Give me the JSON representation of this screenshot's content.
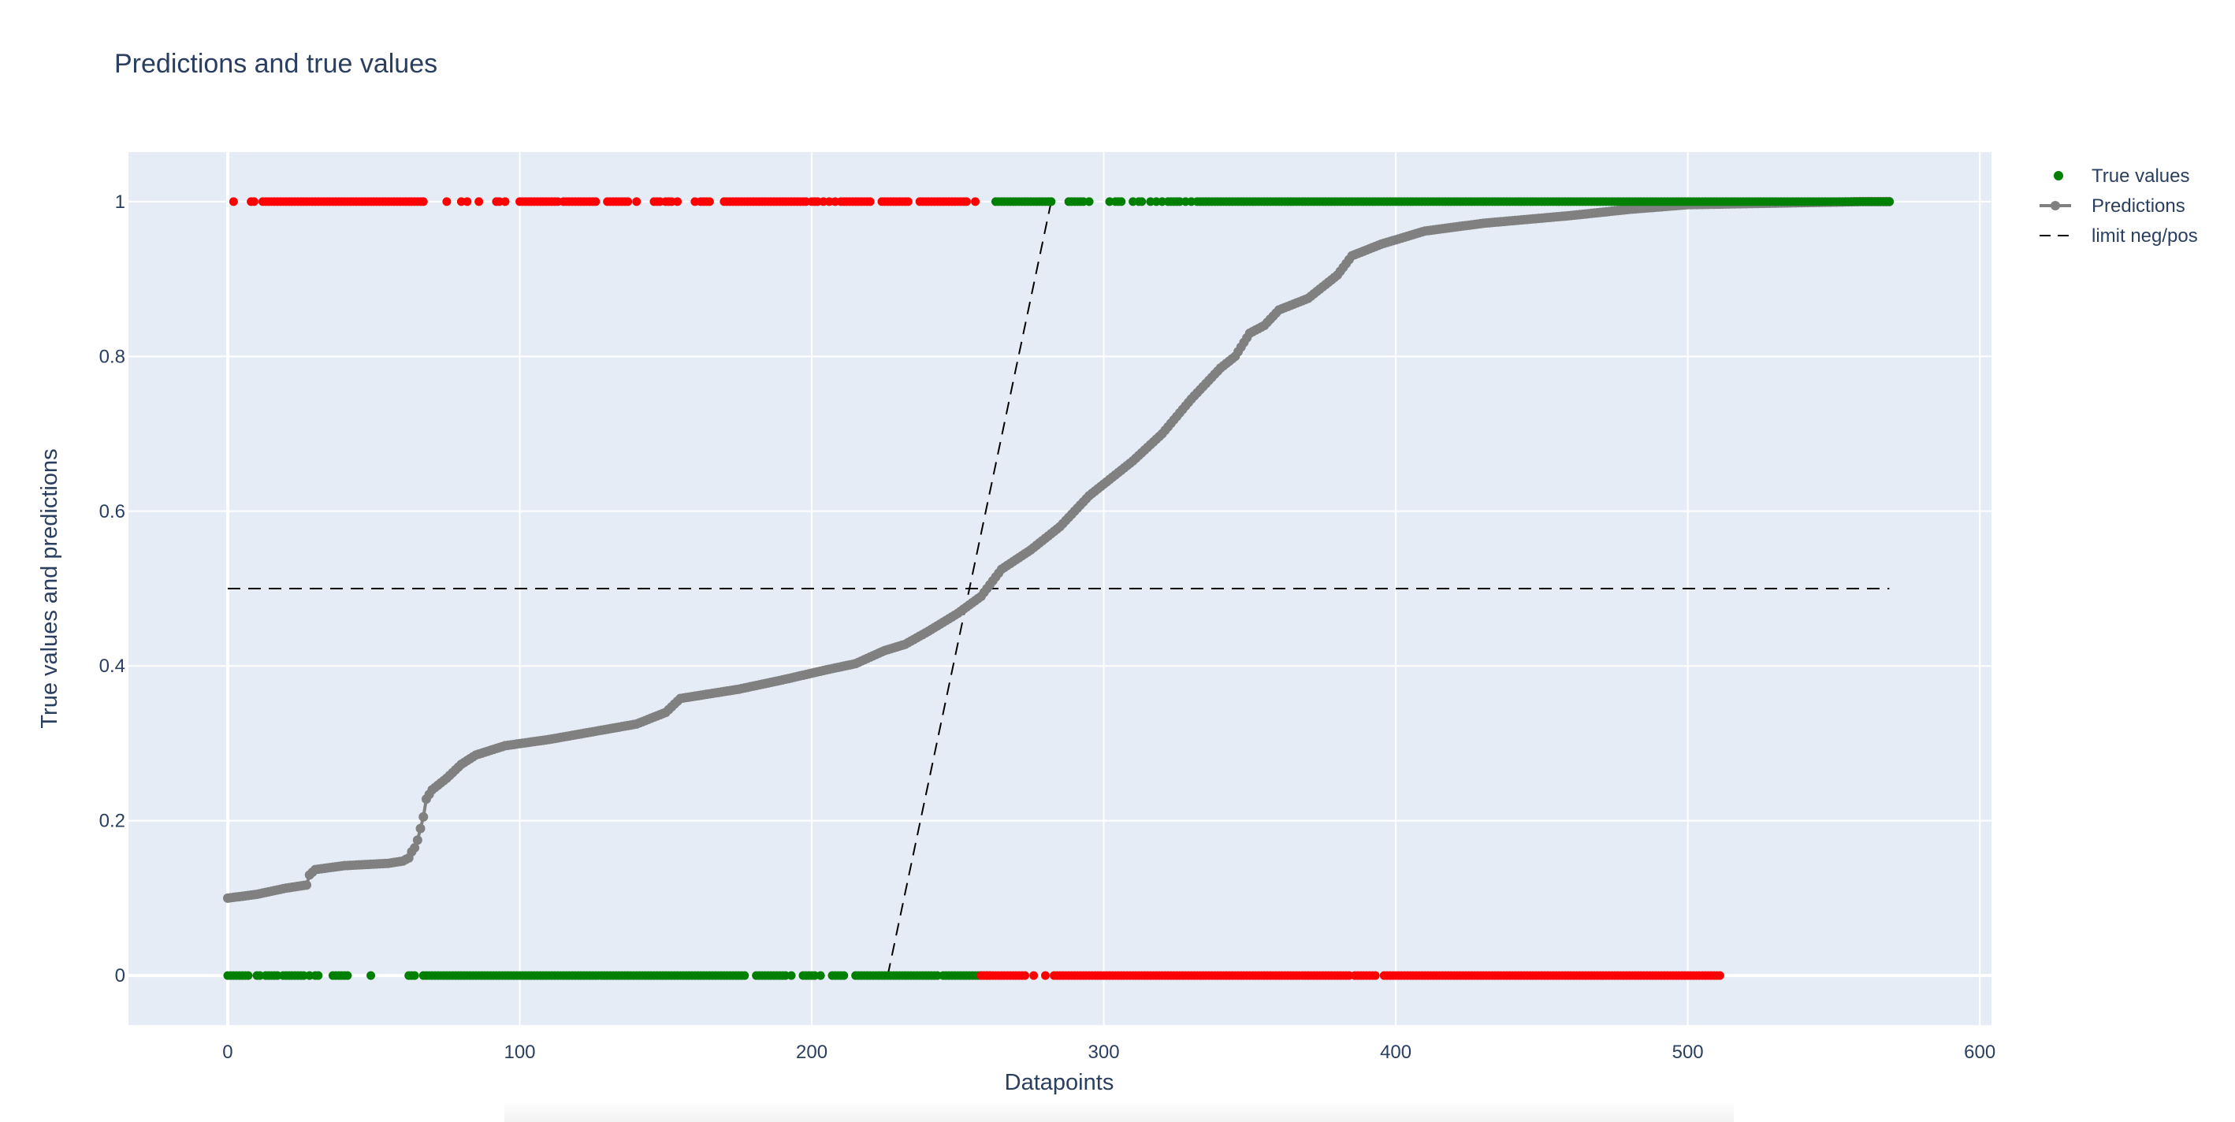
{
  "chart_data": {
    "type": "scatter",
    "title": "Predictions and true values",
    "xlabel": "Datapoints",
    "ylabel": "True values and predictions",
    "xlim": [
      -34,
      604
    ],
    "ylim": [
      -0.064,
      1.064
    ],
    "x_ticks": [
      0,
      100,
      200,
      300,
      400,
      500,
      600
    ],
    "x_tick_labels": [
      "0",
      "100",
      "200",
      "300",
      "400",
      "500",
      "600"
    ],
    "y_ticks": [
      0,
      0.2,
      0.4,
      0.6,
      0.8,
      1
    ],
    "y_tick_labels": [
      "0",
      "0.2",
      "0.4",
      "0.6",
      "0.8",
      "1"
    ],
    "grid": true,
    "legend_position": "top-right",
    "colors": {
      "plot_bg": "#e5ecf6",
      "grid": "#ffffff",
      "correct": "#008000",
      "wrong": "#ff0000",
      "predictions": "#808080",
      "limit": "#000000"
    },
    "legend": [
      {
        "label": "True values",
        "symbol": "marker",
        "color": "#008000"
      },
      {
        "label": "Predictions",
        "symbol": "line-marker",
        "color": "#808080"
      },
      {
        "label": "limit neg/pos",
        "symbol": "dash",
        "color": "#000000"
      }
    ],
    "series": [
      {
        "name": "True values",
        "mode": "markers",
        "points_y1_red": [
          2,
          8,
          9,
          12,
          13,
          14,
          15,
          16,
          17,
          18,
          19,
          20,
          21,
          22,
          23,
          24,
          25,
          26,
          27,
          28,
          29,
          30,
          31,
          32,
          33,
          34,
          35,
          36,
          37,
          38,
          39,
          40,
          41,
          42,
          43,
          44,
          45,
          46,
          47,
          48,
          49,
          50,
          51,
          52,
          53,
          54,
          55,
          56,
          57,
          58,
          59,
          60,
          61,
          62,
          63,
          64,
          65,
          66,
          67,
          75,
          80,
          82,
          86,
          92,
          93,
          95,
          100,
          101,
          102,
          103,
          104,
          105,
          106,
          107,
          108,
          109,
          110,
          111,
          112,
          113,
          115,
          116,
          117,
          118,
          119,
          120,
          121,
          122,
          123,
          124,
          125,
          126,
          130,
          131,
          132,
          133,
          134,
          135,
          136,
          137,
          140,
          146,
          147,
          148,
          150,
          151,
          152,
          154,
          160,
          162,
          163,
          164,
          165,
          170,
          171,
          172,
          173,
          174,
          175,
          176,
          177,
          178,
          179,
          180,
          181,
          182,
          183,
          184,
          185,
          186,
          187,
          188,
          189,
          190,
          191,
          192,
          193,
          194,
          195,
          196,
          197,
          198,
          200,
          201,
          202,
          204,
          206,
          208,
          210,
          211,
          212,
          213,
          214,
          215,
          216,
          217,
          218,
          219,
          220,
          224,
          225,
          226,
          227,
          228,
          229,
          230,
          231,
          232,
          233,
          237,
          238,
          239,
          240,
          241,
          242,
          243,
          244,
          245,
          246,
          247,
          248,
          249,
          250,
          251,
          252,
          253,
          256
        ],
        "points_y1_green": [
          263,
          264,
          265,
          266,
          267,
          268,
          269,
          270,
          271,
          272,
          273,
          274,
          275,
          276,
          277,
          278,
          279,
          280,
          281,
          282,
          288,
          289,
          290,
          291,
          292,
          293,
          295,
          302,
          304,
          305,
          306,
          310,
          312,
          313,
          316,
          318,
          320,
          322,
          323,
          324,
          325,
          326,
          328,
          330,
          332,
          333,
          334,
          335,
          336,
          337,
          338,
          339,
          340,
          341,
          342,
          343,
          344,
          345,
          346,
          347,
          348,
          349,
          350,
          351,
          352,
          353,
          354,
          355,
          356,
          357,
          358,
          359,
          360,
          361,
          362,
          363,
          364,
          365,
          366,
          367,
          368,
          369,
          370,
          371,
          372,
          373,
          374,
          375,
          376,
          377,
          378,
          379,
          380,
          381,
          382,
          383,
          384,
          385,
          386,
          387,
          388,
          389,
          390,
          391,
          392,
          393,
          394,
          395,
          396,
          397,
          398,
          399,
          400,
          401,
          402,
          403,
          404,
          405,
          406,
          407,
          408,
          409,
          410,
          411,
          412,
          413,
          414,
          415,
          416,
          417,
          418,
          419,
          420,
          421,
          422,
          423,
          424,
          425,
          426,
          427,
          428,
          429,
          430,
          431,
          432,
          433,
          434,
          435,
          436,
          437,
          438,
          439,
          440,
          441,
          442,
          443,
          444,
          445,
          446,
          447,
          448,
          449,
          450,
          451,
          452,
          453,
          454,
          455,
          456,
          457,
          458,
          459,
          460,
          461,
          462,
          463,
          464,
          465,
          466,
          467,
          468,
          469,
          470,
          471,
          472,
          473,
          474,
          475,
          476,
          477,
          478,
          479,
          480,
          481,
          482,
          483,
          484,
          485,
          486,
          487,
          488,
          489,
          490,
          491,
          492,
          493,
          494,
          495,
          496,
          497,
          498,
          499,
          500,
          501,
          502,
          503,
          504,
          505,
          506,
          507,
          508,
          509,
          510,
          511,
          512,
          513,
          514,
          515,
          516,
          517,
          518,
          519,
          520,
          521,
          522,
          523,
          524,
          525,
          526,
          527,
          528,
          529,
          530,
          531,
          532,
          533,
          534,
          535,
          536,
          537,
          538,
          539,
          540,
          541,
          542,
          543,
          544,
          545,
          546,
          547,
          548,
          549,
          550,
          551,
          552,
          553,
          554,
          555,
          556,
          557,
          558,
          559,
          560,
          561,
          562,
          563,
          564,
          565,
          566,
          567,
          568,
          569
        ],
        "points_y0_green": [
          0,
          1,
          2,
          3,
          4,
          5,
          6,
          7,
          10,
          11,
          13,
          14,
          15,
          16,
          17,
          19,
          20,
          21,
          22,
          23,
          24,
          25,
          26,
          28,
          30,
          31,
          36,
          37,
          38,
          39,
          40,
          41,
          49,
          62,
          63,
          64,
          67,
          68,
          69,
          70,
          71,
          72,
          73,
          74,
          75,
          76,
          77,
          78,
          79,
          80,
          81,
          82,
          83,
          84,
          85,
          86,
          87,
          88,
          89,
          90,
          91,
          92,
          93,
          94,
          95,
          96,
          97,
          98,
          99,
          100,
          101,
          102,
          103,
          104,
          105,
          106,
          107,
          108,
          109,
          110,
          111,
          112,
          113,
          114,
          115,
          116,
          117,
          118,
          119,
          120,
          121,
          122,
          123,
          124,
          125,
          126,
          127,
          128,
          129,
          130,
          131,
          132,
          133,
          134,
          135,
          136,
          137,
          138,
          139,
          140,
          141,
          142,
          143,
          144,
          145,
          146,
          147,
          148,
          149,
          150,
          151,
          152,
          153,
          154,
          155,
          156,
          157,
          158,
          159,
          160,
          161,
          162,
          163,
          164,
          165,
          166,
          167,
          168,
          169,
          170,
          171,
          172,
          173,
          174,
          175,
          176,
          177,
          181,
          182,
          183,
          184,
          185,
          186,
          187,
          188,
          189,
          190,
          191,
          193,
          197,
          198,
          199,
          200,
          201,
          203,
          207,
          208,
          209,
          210,
          211,
          215,
          216,
          217,
          218,
          219,
          220,
          221,
          222,
          223,
          224,
          225,
          226,
          227,
          228,
          229,
          230,
          231,
          232,
          233,
          234,
          235,
          236,
          237,
          238,
          239,
          240,
          241,
          242,
          243,
          245,
          246,
          247,
          248,
          249,
          250,
          251,
          252,
          253,
          254,
          255,
          256,
          257,
          258,
          259,
          260,
          261
        ],
        "points_y0_red": [
          258,
          259,
          260,
          261,
          262,
          263,
          264,
          265,
          266,
          267,
          268,
          269,
          270,
          271,
          272,
          273,
          276,
          280,
          283,
          284,
          285,
          286,
          287,
          288,
          289,
          290,
          291,
          292,
          293,
          294,
          295,
          296,
          297,
          298,
          299,
          300,
          301,
          302,
          303,
          304,
          305,
          306,
          307,
          308,
          309,
          310,
          311,
          312,
          313,
          314,
          315,
          316,
          317,
          318,
          319,
          320,
          321,
          322,
          323,
          324,
          325,
          326,
          327,
          328,
          329,
          330,
          331,
          332,
          333,
          334,
          335,
          336,
          337,
          338,
          339,
          340,
          341,
          342,
          343,
          344,
          345,
          346,
          347,
          348,
          349,
          350,
          351,
          352,
          353,
          354,
          355,
          356,
          357,
          358,
          359,
          360,
          361,
          362,
          363,
          364,
          365,
          366,
          367,
          368,
          369,
          370,
          371,
          372,
          373,
          374,
          375,
          376,
          377,
          378,
          379,
          380,
          381,
          382,
          383,
          384,
          386,
          387,
          388,
          389,
          390,
          391,
          392,
          393,
          396,
          397,
          398,
          399,
          400,
          401,
          402,
          403,
          404,
          405,
          406,
          407,
          408,
          409,
          410,
          411,
          412,
          413,
          414,
          415,
          416,
          417,
          418,
          419,
          420,
          421,
          422,
          423,
          424,
          425,
          426,
          427,
          428,
          429,
          430,
          431,
          432,
          433,
          434,
          435,
          436,
          437,
          438,
          439,
          440,
          441,
          442,
          443,
          444,
          445,
          446,
          447,
          448,
          449,
          450,
          451,
          452,
          453,
          454,
          455,
          456,
          457,
          458,
          459,
          460,
          461,
          462,
          463,
          464,
          465,
          466,
          467,
          468,
          469,
          470,
          471,
          472,
          473,
          474,
          475,
          476,
          477,
          478,
          479,
          480,
          481,
          482,
          483,
          484,
          485,
          486,
          487,
          488,
          489,
          490,
          491,
          492,
          493,
          494,
          495,
          496,
          497,
          498,
          499,
          500,
          501,
          502,
          503,
          504,
          505,
          506,
          507,
          508,
          509,
          510,
          511
        ]
      },
      {
        "name": "Predictions",
        "mode": "lines+markers",
        "n_points": 570,
        "x": [
          0,
          10,
          20,
          27,
          28,
          30,
          40,
          55,
          60,
          62,
          63,
          64,
          65,
          66,
          67,
          68,
          70,
          75,
          80,
          85,
          95,
          110,
          125,
          140,
          150,
          155,
          175,
          190,
          205,
          215,
          225,
          232,
          240,
          250,
          258,
          262,
          265,
          275,
          285,
          295,
          300,
          310,
          320,
          330,
          340,
          345,
          350,
          355,
          360,
          370,
          375,
          380,
          385,
          395,
          410,
          430,
          460,
          480,
          500,
          530,
          560,
          569
        ],
        "y": [
          0.1,
          0.105,
          0.113,
          0.117,
          0.13,
          0.137,
          0.142,
          0.145,
          0.148,
          0.152,
          0.16,
          0.165,
          0.175,
          0.19,
          0.205,
          0.228,
          0.24,
          0.255,
          0.273,
          0.285,
          0.297,
          0.305,
          0.315,
          0.325,
          0.34,
          0.358,
          0.37,
          0.382,
          0.395,
          0.403,
          0.42,
          0.428,
          0.445,
          0.468,
          0.49,
          0.51,
          0.525,
          0.55,
          0.58,
          0.62,
          0.635,
          0.665,
          0.7,
          0.745,
          0.785,
          0.8,
          0.83,
          0.84,
          0.86,
          0.875,
          0.89,
          0.905,
          0.93,
          0.945,
          0.962,
          0.972,
          0.982,
          0.99,
          0.996,
          0.998,
          1.0,
          1.0
        ]
      },
      {
        "name": "limit neg/pos",
        "mode": "lines",
        "dash": "dash",
        "segments": [
          {
            "x": [
              0,
              569
            ],
            "y": [
              0.5,
              0.5
            ]
          },
          {
            "x": [
              226,
              282
            ],
            "y": [
              0,
              1
            ]
          }
        ]
      }
    ]
  }
}
